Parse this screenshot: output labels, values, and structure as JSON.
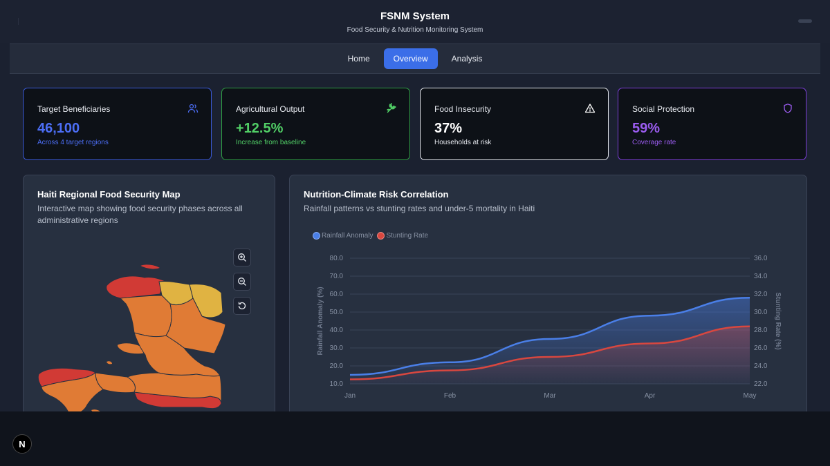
{
  "header": {
    "title": "FSNM System",
    "subtitle": "Food Security & Nutrition Monitoring System"
  },
  "nav": {
    "tabs": [
      {
        "label": "Home",
        "active": false
      },
      {
        "label": "Overview",
        "active": true
      },
      {
        "label": "Analysis",
        "active": false
      }
    ]
  },
  "stats": [
    {
      "label": "Target Beneficiaries",
      "value": "46,100",
      "sub": "Across 4 target regions",
      "icon": "users-icon",
      "accent": "#3b5bdb",
      "value_color": "#4c6ef5"
    },
    {
      "label": "Agricultural Output",
      "value": "+12.5%",
      "sub": "Increase from baseline",
      "icon": "wheat-icon",
      "accent": "#2f9e44",
      "value_color": "#51cf66"
    },
    {
      "label": "Food Insecurity",
      "value": "37%",
      "sub": "Households at risk",
      "icon": "alert-triangle-icon",
      "accent": "#e6e9ef",
      "value_color": "#ffffff"
    },
    {
      "label": "Social Protection",
      "value": "59%",
      "sub": "Coverage rate",
      "icon": "shield-icon",
      "accent": "#7e3fd9",
      "value_color": "#9b5cf0"
    }
  ],
  "map_panel": {
    "title": "Haiti Regional Food Security Map",
    "description_line1": "Interactive map showing food security phases across all",
    "description_line2": "administrative regions",
    "controls": [
      "zoom-in-icon",
      "zoom-out-icon",
      "reset-icon"
    ]
  },
  "chart_panel": {
    "title": "Nutrition-Climate Risk Correlation",
    "description": "Rainfall patterns vs stunting rates and under-5 mortality in Haiti"
  },
  "chart_data": {
    "type": "line",
    "categories": [
      "Jan",
      "Feb",
      "Mar",
      "Apr",
      "May"
    ],
    "series": [
      {
        "name": "Rainfall Anomaly",
        "axis": "left",
        "color": "#4a7fe8",
        "values": [
          15.0,
          22.0,
          35.0,
          48.0,
          58.0
        ]
      },
      {
        "name": "Stunting Rate",
        "axis": "right",
        "color": "#d9473f",
        "values": [
          22.5,
          23.5,
          25.0,
          26.5,
          28.4
        ]
      }
    ],
    "y_left": {
      "label": "Rainfall Anomaly (%)",
      "min": 10,
      "max": 80,
      "ticks": [
        "10.0",
        "20.0",
        "30.0",
        "40.0",
        "50.0",
        "60.0",
        "70.0",
        "80.0"
      ]
    },
    "y_right": {
      "label": "Stunting Rate (%)",
      "min": 22,
      "max": 36,
      "ticks": [
        "22.0",
        "24.0",
        "26.0",
        "28.0",
        "30.0",
        "32.0",
        "34.0",
        "36.0"
      ]
    },
    "legend": "top-left",
    "grid": true
  },
  "footer": {
    "badge": "N"
  }
}
